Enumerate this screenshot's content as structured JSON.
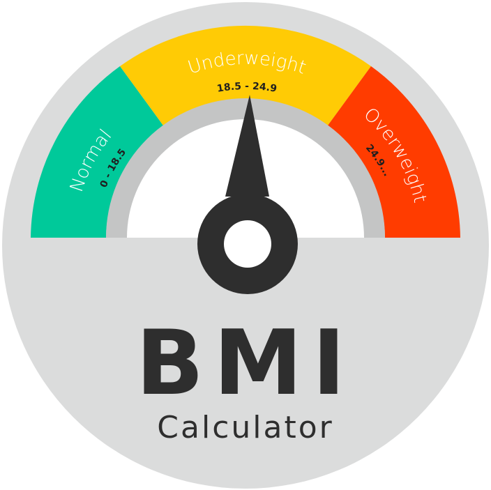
{
  "title": "BMI",
  "subtitle": "Calculator",
  "segments": [
    {
      "label": "Normal",
      "range": "0 - 18.5",
      "color": "#00c99a"
    },
    {
      "label": "Underweight",
      "range": "18.5 - 24.9",
      "color": "#ffcb05"
    },
    {
      "label": "Overweight",
      "range": "24.9...",
      "color": "#ff3c00"
    }
  ],
  "colors": {
    "disc": "#dbdcdc",
    "inner_ring": "#c4c5c5",
    "dial_face": "#ffffff",
    "needle": "#2e2e2e"
  }
}
